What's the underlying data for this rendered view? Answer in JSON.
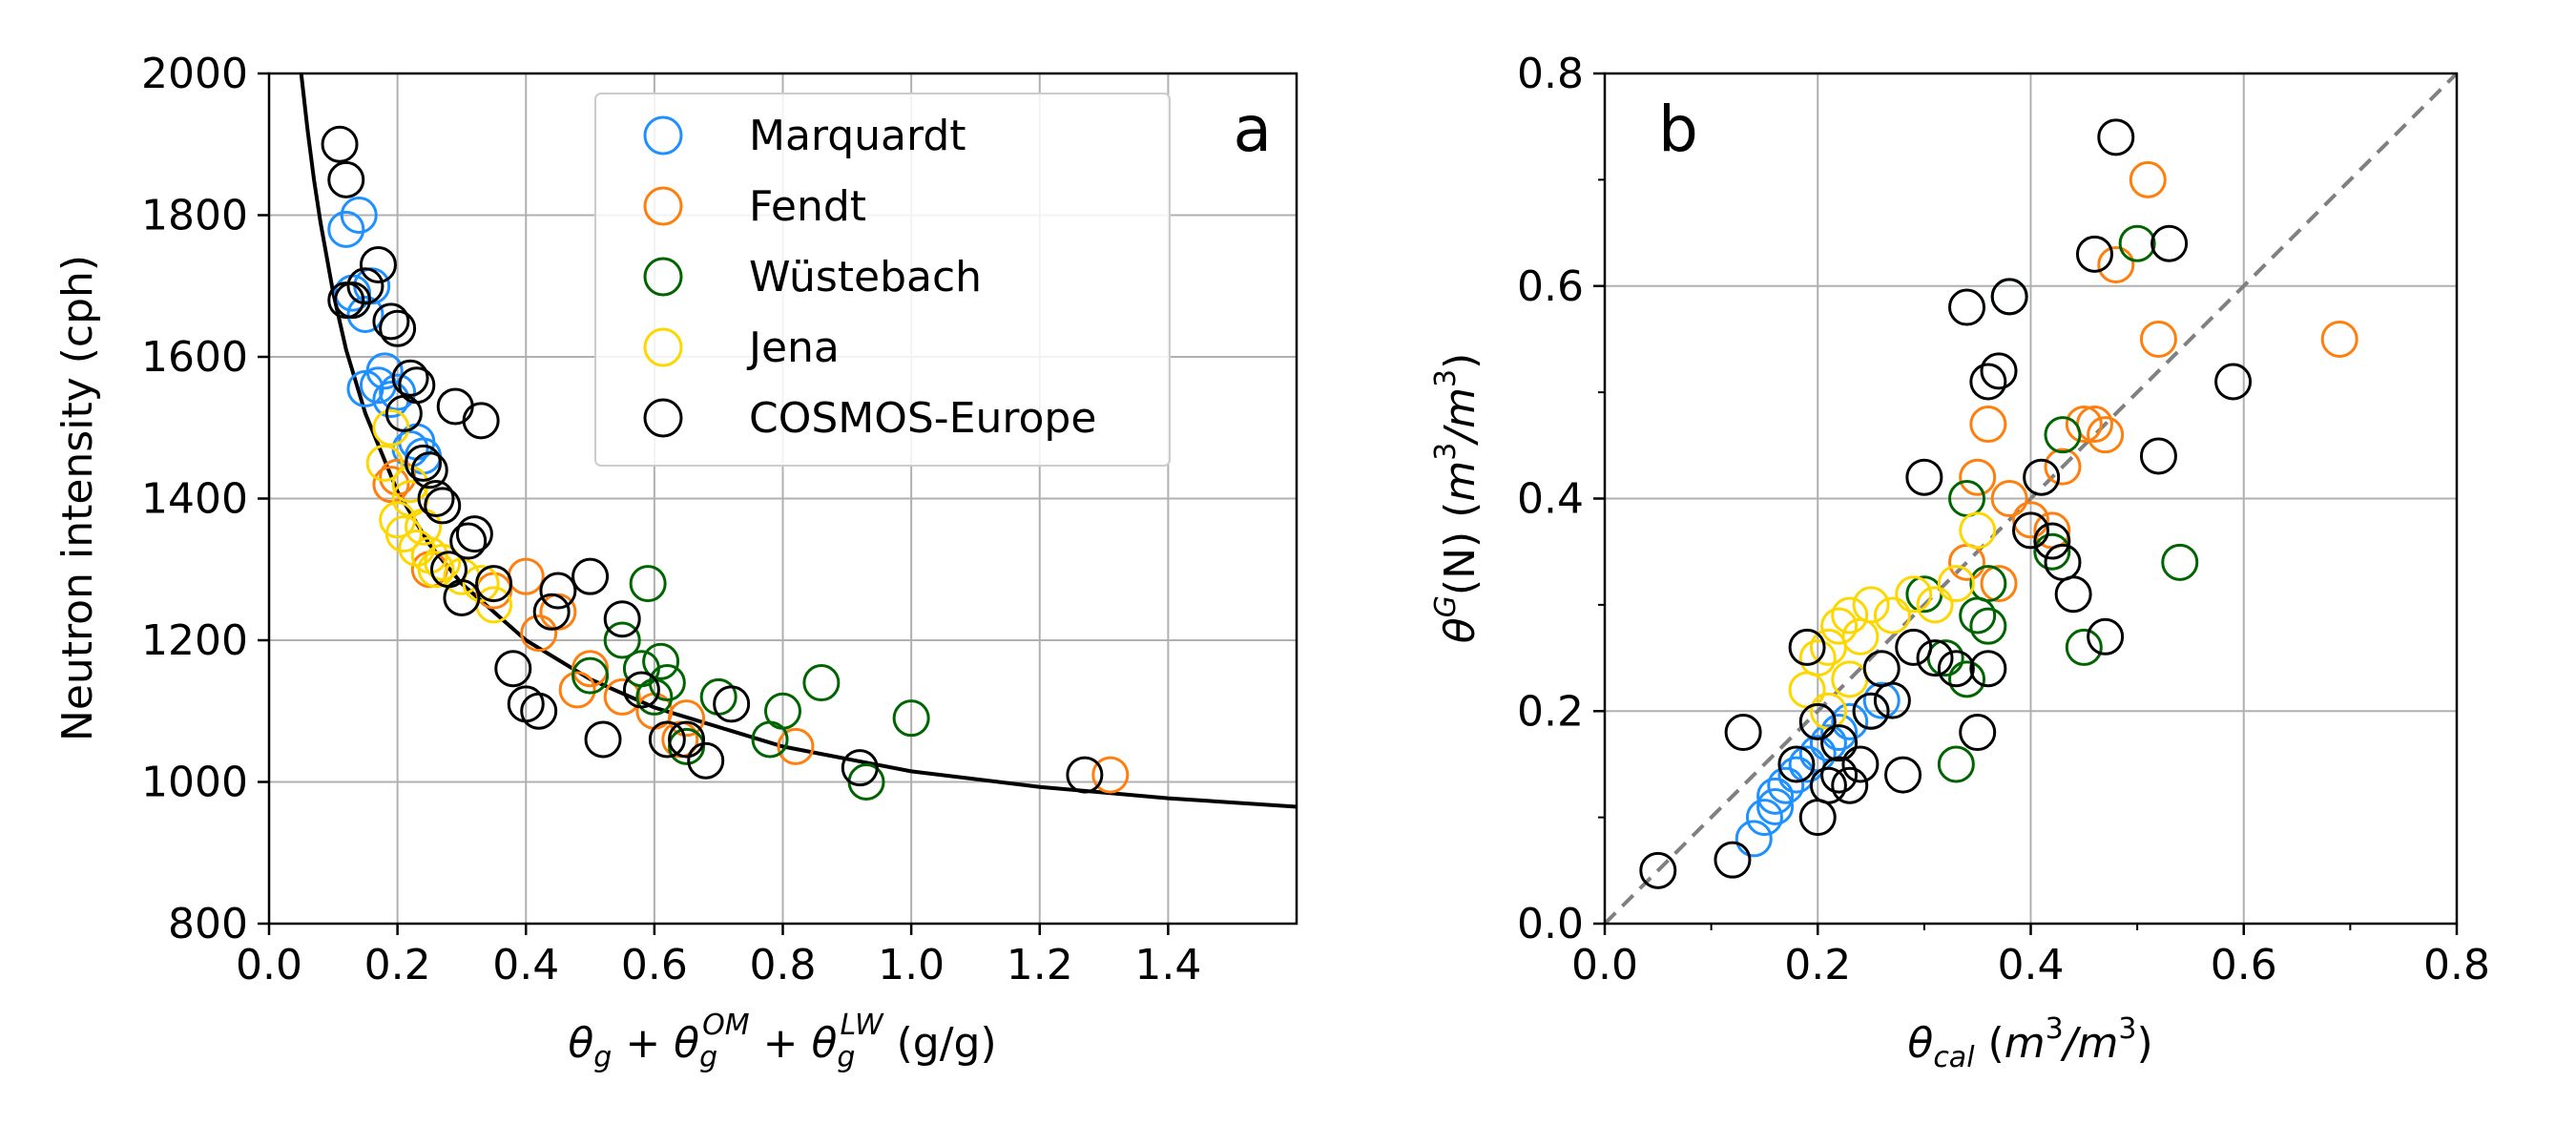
{
  "colors": {
    "Marquardt": "#1e90ff",
    "Fendt": "#ff7f0e",
    "Wüstebach": "#006400",
    "Jena": "#ffd700",
    "COSMOS-Europe": "#000000",
    "grid": "#b0b0b0",
    "curve": "#000000",
    "one_to_one": "#808080"
  },
  "chart_data": [
    {
      "type": "scatter",
      "panel_label": "a",
      "xlabel": "θg + θgOM + θgLW (g/g)",
      "ylabel": "Neutron intensity (cph)",
      "xlim": [
        0.0,
        1.6
      ],
      "ylim": [
        800,
        2000
      ],
      "xticks": [
        "0.0",
        "0.2",
        "0.4",
        "0.6",
        "0.8",
        "1.0",
        "1.2",
        "1.4"
      ],
      "yticks": [
        "800",
        "1000",
        "1200",
        "1400",
        "1600",
        "1800",
        "2000"
      ],
      "grid": true,
      "legend": {
        "placement": "top-right",
        "entries": [
          "Marquardt",
          "Fendt",
          "Wüstebach",
          "Jena",
          "COSMOS-Europe"
        ]
      },
      "fit_curve": {
        "style": "solid black line",
        "x": [
          0.05,
          0.06,
          0.07,
          0.08,
          0.1,
          0.12,
          0.15,
          0.2,
          0.25,
          0.3,
          0.4,
          0.5,
          0.6,
          0.8,
          1.0,
          1.2,
          1.4,
          1.6
        ],
        "y": [
          2000,
          1920,
          1850,
          1790,
          1690,
          1610,
          1520,
          1410,
          1335,
          1280,
          1200,
          1145,
          1105,
          1050,
          1015,
          993,
          977,
          965
        ]
      },
      "series": [
        {
          "name": "Marquardt",
          "x": [
            0.12,
            0.13,
            0.14,
            0.15,
            0.16,
            0.17,
            0.18,
            0.2,
            0.22,
            0.24,
            0.15,
            0.19,
            0.23
          ],
          "y": [
            1780,
            1690,
            1800,
            1660,
            1700,
            1560,
            1580,
            1550,
            1470,
            1460,
            1555,
            1540,
            1480
          ]
        },
        {
          "name": "Fendt",
          "x": [
            0.19,
            0.2,
            0.25,
            0.35,
            0.4,
            0.42,
            0.45,
            0.48,
            0.5,
            0.55,
            0.6,
            0.64,
            0.65,
            0.82,
            1.31
          ],
          "y": [
            1420,
            1430,
            1300,
            1270,
            1290,
            1210,
            1240,
            1130,
            1160,
            1120,
            1100,
            1060,
            1090,
            1050,
            1010
          ]
        },
        {
          "name": "Wüstebach",
          "x": [
            0.5,
            0.55,
            0.58,
            0.59,
            0.6,
            0.61,
            0.62,
            0.65,
            0.7,
            0.78,
            0.8,
            0.86,
            0.93,
            1.0
          ],
          "y": [
            1150,
            1200,
            1160,
            1280,
            1120,
            1170,
            1140,
            1050,
            1120,
            1060,
            1100,
            1140,
            1000,
            1090
          ]
        },
        {
          "name": "Jena",
          "x": [
            0.19,
            0.2,
            0.21,
            0.22,
            0.23,
            0.24,
            0.25,
            0.27,
            0.3,
            0.33,
            0.35,
            0.22,
            0.26,
            0.18
          ],
          "y": [
            1500,
            1370,
            1350,
            1400,
            1330,
            1360,
            1320,
            1310,
            1290,
            1280,
            1250,
            1420,
            1300,
            1450
          ]
        },
        {
          "name": "COSMOS-Europe",
          "x": [
            0.11,
            0.12,
            0.13,
            0.15,
            0.17,
            0.19,
            0.2,
            0.22,
            0.23,
            0.25,
            0.26,
            0.27,
            0.28,
            0.29,
            0.3,
            0.32,
            0.33,
            0.35,
            0.38,
            0.4,
            0.42,
            0.45,
            0.5,
            0.52,
            0.55,
            0.58,
            0.62,
            0.65,
            0.68,
            0.72,
            0.92,
            1.27,
            0.12,
            0.21,
            0.24,
            0.31,
            0.44
          ],
          "y": [
            1900,
            1850,
            1680,
            1700,
            1730,
            1650,
            1640,
            1570,
            1560,
            1440,
            1400,
            1390,
            1300,
            1530,
            1260,
            1350,
            1510,
            1280,
            1160,
            1110,
            1100,
            1270,
            1290,
            1060,
            1230,
            1130,
            1060,
            1060,
            1030,
            1110,
            1020,
            1010,
            1680,
            1520,
            1450,
            1340,
            1240
          ]
        }
      ]
    },
    {
      "type": "scatter",
      "panel_label": "b",
      "xlabel": "θcal (m3/m3)",
      "ylabel": "θG(N) (m3/m3)",
      "xlim": [
        0.0,
        0.8
      ],
      "ylim": [
        0.0,
        0.8
      ],
      "xticks": [
        "0.0",
        "0.2",
        "0.4",
        "0.6",
        "0.8"
      ],
      "yticks": [
        "0.0",
        "0.2",
        "0.4",
        "0.6",
        "0.8"
      ],
      "grid": true,
      "one_to_one_line": {
        "style": "dashed grey",
        "x": [
          0.0,
          0.8
        ],
        "y": [
          0.0,
          0.8
        ]
      },
      "series": [
        {
          "name": "Marquardt",
          "x": [
            0.14,
            0.15,
            0.16,
            0.17,
            0.18,
            0.2,
            0.21,
            0.22,
            0.23,
            0.25,
            0.26,
            0.16,
            0.19
          ],
          "y": [
            0.08,
            0.1,
            0.12,
            0.13,
            0.14,
            0.16,
            0.17,
            0.18,
            0.19,
            0.2,
            0.21,
            0.11,
            0.15
          ]
        },
        {
          "name": "Fendt",
          "x": [
            0.35,
            0.36,
            0.38,
            0.4,
            0.42,
            0.43,
            0.45,
            0.46,
            0.47,
            0.48,
            0.51,
            0.52,
            0.69,
            0.34,
            0.37
          ],
          "y": [
            0.42,
            0.47,
            0.4,
            0.38,
            0.37,
            0.43,
            0.47,
            0.47,
            0.46,
            0.62,
            0.7,
            0.55,
            0.55,
            0.34,
            0.32
          ]
        },
        {
          "name": "Wüstebach",
          "x": [
            0.3,
            0.32,
            0.33,
            0.34,
            0.35,
            0.36,
            0.38,
            0.42,
            0.43,
            0.45,
            0.5,
            0.54,
            0.34,
            0.36
          ],
          "y": [
            0.31,
            0.25,
            0.15,
            0.23,
            0.29,
            0.32,
            0.59,
            0.35,
            0.46,
            0.26,
            0.64,
            0.34,
            0.4,
            0.28
          ]
        },
        {
          "name": "Jena",
          "x": [
            0.19,
            0.2,
            0.21,
            0.22,
            0.23,
            0.24,
            0.25,
            0.27,
            0.29,
            0.31,
            0.33,
            0.35,
            0.21,
            0.23
          ],
          "y": [
            0.22,
            0.25,
            0.26,
            0.28,
            0.29,
            0.27,
            0.3,
            0.29,
            0.31,
            0.3,
            0.32,
            0.37,
            0.2,
            0.23
          ]
        },
        {
          "name": "COSMOS-Europe",
          "x": [
            0.05,
            0.12,
            0.13,
            0.18,
            0.19,
            0.2,
            0.2,
            0.21,
            0.22,
            0.22,
            0.23,
            0.24,
            0.25,
            0.26,
            0.27,
            0.28,
            0.29,
            0.3,
            0.31,
            0.33,
            0.34,
            0.35,
            0.36,
            0.36,
            0.37,
            0.38,
            0.4,
            0.41,
            0.42,
            0.43,
            0.44,
            0.46,
            0.47,
            0.48,
            0.52,
            0.53,
            0.59
          ],
          "y": [
            0.05,
            0.06,
            0.18,
            0.15,
            0.26,
            0.1,
            0.19,
            0.13,
            0.17,
            0.14,
            0.13,
            0.15,
            0.2,
            0.24,
            0.21,
            0.14,
            0.26,
            0.42,
            0.25,
            0.24,
            0.58,
            0.18,
            0.51,
            0.24,
            0.52,
            0.59,
            0.37,
            0.42,
            0.36,
            0.34,
            0.31,
            0.63,
            0.27,
            0.74,
            0.44,
            0.64,
            0.51
          ]
        }
      ]
    }
  ]
}
